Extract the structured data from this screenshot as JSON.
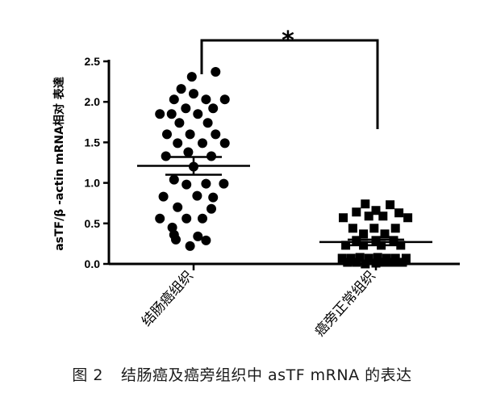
{
  "figure": {
    "caption_label": "图 2",
    "caption_text": "结肠癌及癌旁组织中 asTF mRNA 的表达"
  },
  "chart_data": {
    "type": "scatter",
    "ylabel": "asTF/β -actin mRNA相对 表達",
    "ylim": [
      0,
      2.5
    ],
    "yticks": [
      "0.0",
      "0.5",
      "1.0",
      "1.5",
      "2.0",
      "2.5"
    ],
    "categories": [
      "结肠癌组织",
      "癌旁正常组织"
    ],
    "significance": "*",
    "series": [
      {
        "category": "结肠癌组织",
        "marker": "circle",
        "mean": 1.21,
        "sem_upper": 1.32,
        "sem_lower": 1.1,
        "points": [
          {
            "pos": 0.62,
            "y": 2.37
          },
          {
            "pos": -0.05,
            "y": 2.31
          },
          {
            "pos": -0.35,
            "y": 2.16
          },
          {
            "pos": 0.0,
            "y": 2.1
          },
          {
            "pos": -0.55,
            "y": 2.03
          },
          {
            "pos": 0.35,
            "y": 2.03
          },
          {
            "pos": 0.88,
            "y": 2.03
          },
          {
            "pos": -0.22,
            "y": 1.92
          },
          {
            "pos": 0.55,
            "y": 1.92
          },
          {
            "pos": -0.95,
            "y": 1.85
          },
          {
            "pos": -0.62,
            "y": 1.85
          },
          {
            "pos": 0.12,
            "y": 1.85
          },
          {
            "pos": -0.4,
            "y": 1.74
          },
          {
            "pos": 0.4,
            "y": 1.74
          },
          {
            "pos": -0.75,
            "y": 1.6
          },
          {
            "pos": -0.1,
            "y": 1.6
          },
          {
            "pos": 0.62,
            "y": 1.6
          },
          {
            "pos": -0.45,
            "y": 1.49
          },
          {
            "pos": 0.25,
            "y": 1.49
          },
          {
            "pos": 0.88,
            "y": 1.49
          },
          {
            "pos": -0.15,
            "y": 1.38
          },
          {
            "pos": -0.78,
            "y": 1.33
          },
          {
            "pos": 0.5,
            "y": 1.33
          },
          {
            "pos": 0.0,
            "y": 1.2
          },
          {
            "pos": -0.55,
            "y": 1.04
          },
          {
            "pos": 0.35,
            "y": 0.99
          },
          {
            "pos": 0.85,
            "y": 0.99
          },
          {
            "pos": -0.2,
            "y": 0.98
          },
          {
            "pos": -0.85,
            "y": 0.83
          },
          {
            "pos": 0.1,
            "y": 0.84
          },
          {
            "pos": 0.55,
            "y": 0.82
          },
          {
            "pos": -0.45,
            "y": 0.7
          },
          {
            "pos": 0.5,
            "y": 0.68
          },
          {
            "pos": -0.95,
            "y": 0.56
          },
          {
            "pos": -0.2,
            "y": 0.56
          },
          {
            "pos": 0.25,
            "y": 0.56
          },
          {
            "pos": -0.6,
            "y": 0.45
          },
          {
            "pos": -0.55,
            "y": 0.36
          },
          {
            "pos": 0.12,
            "y": 0.34
          },
          {
            "pos": -0.5,
            "y": 0.3
          },
          {
            "pos": 0.35,
            "y": 0.29
          },
          {
            "pos": -0.1,
            "y": 0.22
          }
        ]
      },
      {
        "category": "癌旁正常组织",
        "marker": "square",
        "mean": 0.27,
        "sem_upper": 0.3,
        "sem_lower": 0.23,
        "points": [
          {
            "pos": -0.3,
            "y": 0.74
          },
          {
            "pos": 0.4,
            "y": 0.73
          },
          {
            "pos": 0.0,
            "y": 0.66
          },
          {
            "pos": -0.55,
            "y": 0.64
          },
          {
            "pos": 0.65,
            "y": 0.63
          },
          {
            "pos": -0.2,
            "y": 0.59
          },
          {
            "pos": 0.2,
            "y": 0.59
          },
          {
            "pos": -0.92,
            "y": 0.57
          },
          {
            "pos": 0.9,
            "y": 0.57
          },
          {
            "pos": -0.65,
            "y": 0.44
          },
          {
            "pos": -0.05,
            "y": 0.44
          },
          {
            "pos": 0.55,
            "y": 0.44
          },
          {
            "pos": -0.35,
            "y": 0.37
          },
          {
            "pos": 0.25,
            "y": 0.37
          },
          {
            "pos": -0.55,
            "y": 0.29
          },
          {
            "pos": 0.0,
            "y": 0.29
          },
          {
            "pos": 0.5,
            "y": 0.29
          },
          {
            "pos": -0.85,
            "y": 0.23
          },
          {
            "pos": -0.35,
            "y": 0.23
          },
          {
            "pos": 0.15,
            "y": 0.23
          },
          {
            "pos": 0.7,
            "y": 0.23
          },
          {
            "pos": -0.95,
            "y": 0.07
          },
          {
            "pos": -0.7,
            "y": 0.07
          },
          {
            "pos": -0.45,
            "y": 0.08
          },
          {
            "pos": -0.2,
            "y": 0.07
          },
          {
            "pos": 0.05,
            "y": 0.08
          },
          {
            "pos": 0.3,
            "y": 0.07
          },
          {
            "pos": 0.55,
            "y": 0.07
          },
          {
            "pos": 0.85,
            "y": 0.07
          },
          {
            "pos": -0.8,
            "y": 0.02
          },
          {
            "pos": -0.55,
            "y": 0.02
          },
          {
            "pos": -0.3,
            "y": 0.0
          },
          {
            "pos": 0.0,
            "y": 0.01
          },
          {
            "pos": 0.25,
            "y": 0.02
          },
          {
            "pos": 0.5,
            "y": 0.02
          },
          {
            "pos": 0.75,
            "y": 0.02
          }
        ]
      }
    ]
  }
}
